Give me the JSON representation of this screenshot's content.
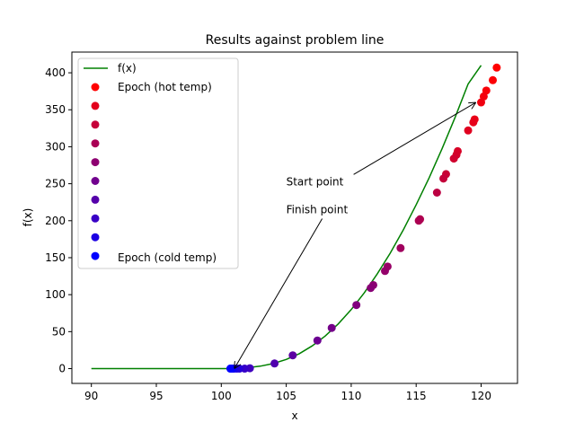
{
  "chart_data": {
    "type": "scatter",
    "title": "Results against problem line",
    "xlabel": "x",
    "ylabel": "f(x)",
    "xlim": [
      88.5,
      122.8
    ],
    "ylim": [
      -20,
      428
    ],
    "xticks": [
      90,
      95,
      100,
      105,
      110,
      115,
      120
    ],
    "yticks": [
      0,
      50,
      100,
      150,
      200,
      250,
      300,
      350,
      400
    ],
    "grid": false,
    "legend_placement": "upper-left",
    "line": {
      "name": "f(x)",
      "color": "#008000",
      "x": [
        90,
        92,
        94,
        96,
        98,
        99,
        100,
        100.5,
        101,
        102,
        103,
        104,
        105,
        106,
        107,
        108,
        109,
        110,
        111,
        112,
        113,
        114,
        115,
        116,
        117,
        118,
        119,
        120
      ],
      "y": [
        0,
        0,
        0,
        0,
        0,
        0,
        0,
        0,
        0.3,
        1.2,
        3.3,
        6.8,
        12.4,
        20.2,
        30.8,
        44.1,
        60.4,
        79.8,
        102.4,
        127.9,
        156.0,
        187.1,
        221.5,
        258.2,
        297.6,
        339.9,
        384.8,
        410
      ]
    },
    "legend": {
      "line_label": "f(x)",
      "hot_label": "Epoch (hot temp)",
      "cold_label": "Epoch (cold temp)",
      "gradient_steps": 10
    },
    "points": [
      {
        "x": 121.2,
        "y": 407,
        "color": "#ff0000"
      },
      {
        "x": 120.9,
        "y": 390,
        "color": "#fc0004"
      },
      {
        "x": 120.4,
        "y": 376,
        "color": "#f80008"
      },
      {
        "x": 120.2,
        "y": 368,
        "color": "#f4000c"
      },
      {
        "x": 120.0,
        "y": 360,
        "color": "#f00010"
      },
      {
        "x": 119.5,
        "y": 337,
        "color": "#ea0016"
      },
      {
        "x": 119.4,
        "y": 333,
        "color": "#e6001a"
      },
      {
        "x": 119.0,
        "y": 322,
        "color": "#e0001f"
      },
      {
        "x": 118.2,
        "y": 294,
        "color": "#d80026"
      },
      {
        "x": 118.1,
        "y": 289,
        "color": "#d40029"
      },
      {
        "x": 117.9,
        "y": 284,
        "color": "#d0002e"
      },
      {
        "x": 117.3,
        "y": 263,
        "color": "#c80036"
      },
      {
        "x": 117.1,
        "y": 257,
        "color": "#c4003a"
      },
      {
        "x": 116.6,
        "y": 238,
        "color": "#bc0042"
      },
      {
        "x": 115.3,
        "y": 202,
        "color": "#b0004e"
      },
      {
        "x": 115.2,
        "y": 200,
        "color": "#ac0052"
      },
      {
        "x": 113.8,
        "y": 163,
        "color": "#a0005e"
      },
      {
        "x": 112.8,
        "y": 138,
        "color": "#980066"
      },
      {
        "x": 112.6,
        "y": 132,
        "color": "#94006a"
      },
      {
        "x": 111.7,
        "y": 113,
        "color": "#8c0072"
      },
      {
        "x": 111.5,
        "y": 109,
        "color": "#880076"
      },
      {
        "x": 110.4,
        "y": 86,
        "color": "#80007e"
      },
      {
        "x": 108.5,
        "y": 55,
        "color": "#740089"
      },
      {
        "x": 107.4,
        "y": 38,
        "color": "#6c0092"
      },
      {
        "x": 105.5,
        "y": 18,
        "color": "#5c00a2"
      },
      {
        "x": 104.1,
        "y": 7,
        "color": "#5000ae"
      },
      {
        "x": 102.2,
        "y": 0.5,
        "color": "#4000be"
      },
      {
        "x": 101.8,
        "y": 0,
        "color": "#3600c8"
      },
      {
        "x": 101.4,
        "y": 0,
        "color": "#2800d6"
      },
      {
        "x": 101.2,
        "y": 0,
        "color": "#2000de"
      },
      {
        "x": 101.0,
        "y": 0,
        "color": "#1800e6"
      },
      {
        "x": 100.9,
        "y": 0,
        "color": "#1000ee"
      },
      {
        "x": 100.8,
        "y": 0,
        "color": "#0800f6"
      },
      {
        "x": 100.7,
        "y": 0,
        "color": "#0000ff"
      }
    ],
    "annotations": [
      {
        "text": "Start point",
        "text_x": 105,
        "text_y": 248,
        "target_x": 119.6,
        "target_y": 360
      },
      {
        "text": "Finish point",
        "text_x": 105,
        "text_y": 210,
        "target_x": 101.0,
        "target_y": 0
      }
    ]
  }
}
